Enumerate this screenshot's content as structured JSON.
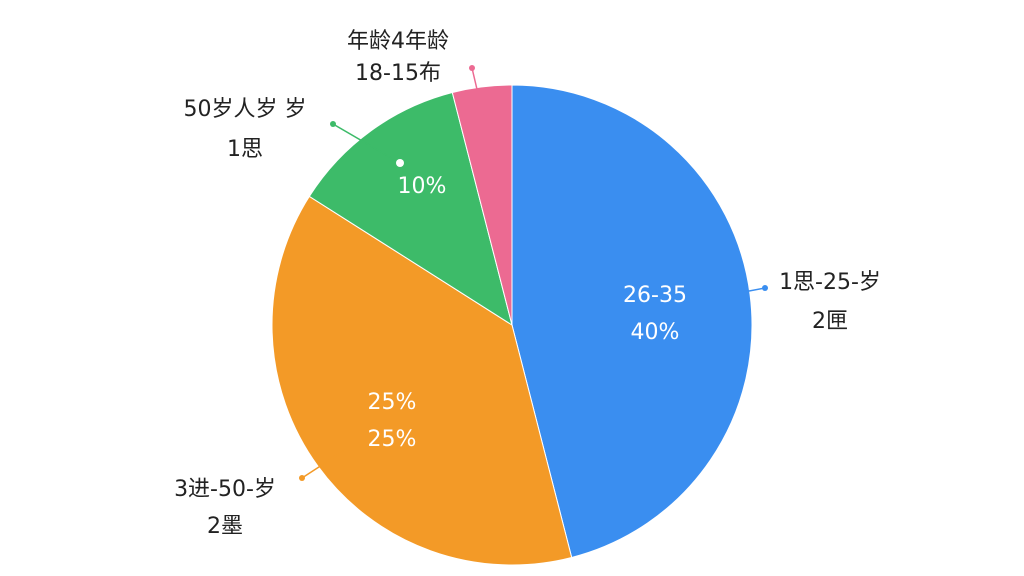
{
  "chart_data": {
    "type": "pie",
    "slices": [
      {
        "name": "blue",
        "color": "#3a8ef0",
        "value": 46,
        "inner_text": [
          "26-35",
          "40%"
        ],
        "outer_text": [
          "1思-25-岁",
          "2匣"
        ]
      },
      {
        "name": "orange",
        "color": "#f39a27",
        "value": 38,
        "inner_text": [
          "25%",
          "25%"
        ],
        "outer_text": [
          "3进-50-岁",
          "2墨"
        ]
      },
      {
        "name": "green",
        "color": "#3dbb69",
        "value": 12,
        "inner_text": [
          "10%"
        ],
        "outer_text": [
          "50岁人岁 岁",
          "1思"
        ]
      },
      {
        "name": "pink",
        "color": "#ec6a92",
        "value": 4,
        "inner_text": [],
        "outer_text": [
          "年龄4年龄",
          "18-15布"
        ]
      }
    ]
  }
}
